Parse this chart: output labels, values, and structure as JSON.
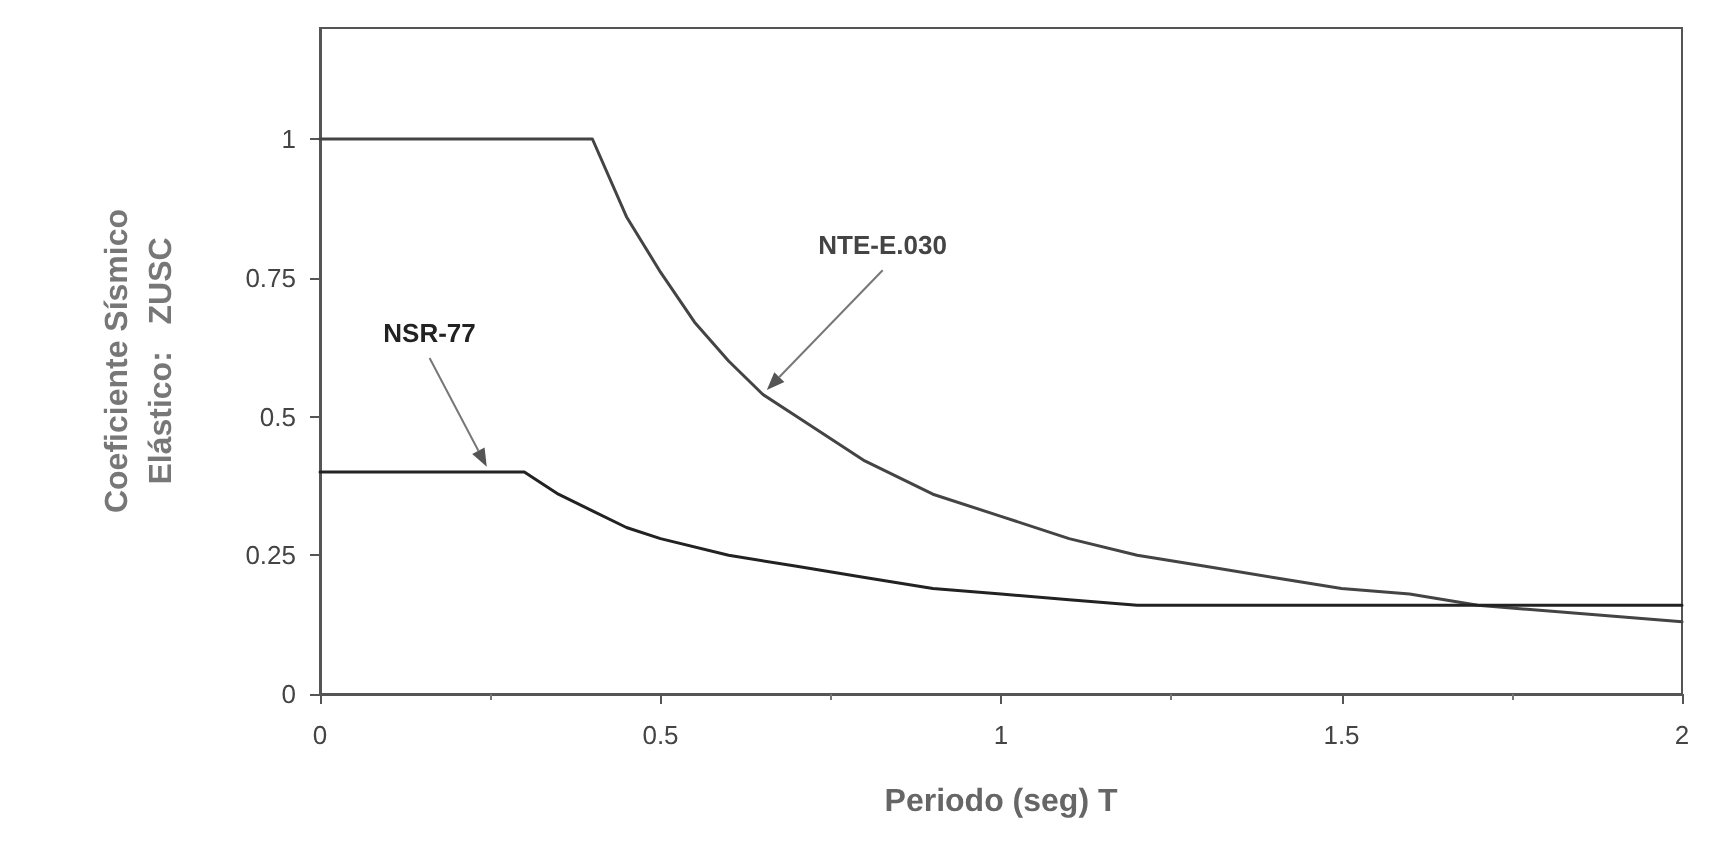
{
  "chart_data": {
    "type": "line",
    "xlabel": "Periodo (seg) T",
    "ylabel": "Coeficiente Sísmico\nElástico:   ZUSC",
    "series": [
      {
        "name": "NTE-E.030",
        "color": "#444444",
        "x": [
          0,
          0.4,
          0.45,
          0.5,
          0.55,
          0.6,
          0.65,
          0.7,
          0.8,
          0.9,
          1.0,
          1.1,
          1.2,
          1.3,
          1.4,
          1.5,
          1.6,
          1.7,
          1.8,
          1.9,
          2.0
        ],
        "values": [
          1,
          1,
          0.86,
          0.76,
          0.67,
          0.6,
          0.54,
          0.5,
          0.42,
          0.36,
          0.32,
          0.28,
          0.25,
          0.23,
          0.21,
          0.19,
          0.18,
          0.16,
          0.15,
          0.14,
          0.13
        ]
      },
      {
        "name": "NSR-77",
        "color": "#222222",
        "x": [
          0,
          0.3,
          0.35,
          0.4,
          0.45,
          0.5,
          0.6,
          0.7,
          0.8,
          0.9,
          1.0,
          1.1,
          1.2,
          2.0
        ],
        "values": [
          0.4,
          0.4,
          0.36,
          0.33,
          0.3,
          0.28,
          0.25,
          0.23,
          0.21,
          0.19,
          0.18,
          0.17,
          0.16,
          0.16
        ]
      }
    ],
    "xlim": [
      0,
      2
    ],
    "xticks": [
      0,
      0.5,
      1,
      1.5,
      2
    ],
    "ylim": [
      0,
      1.2
    ],
    "yticks": [
      0,
      0.25,
      0.5,
      0.75,
      1
    ],
    "grid": false,
    "legend": false,
    "marker": "none",
    "line_style": "solid"
  }
}
